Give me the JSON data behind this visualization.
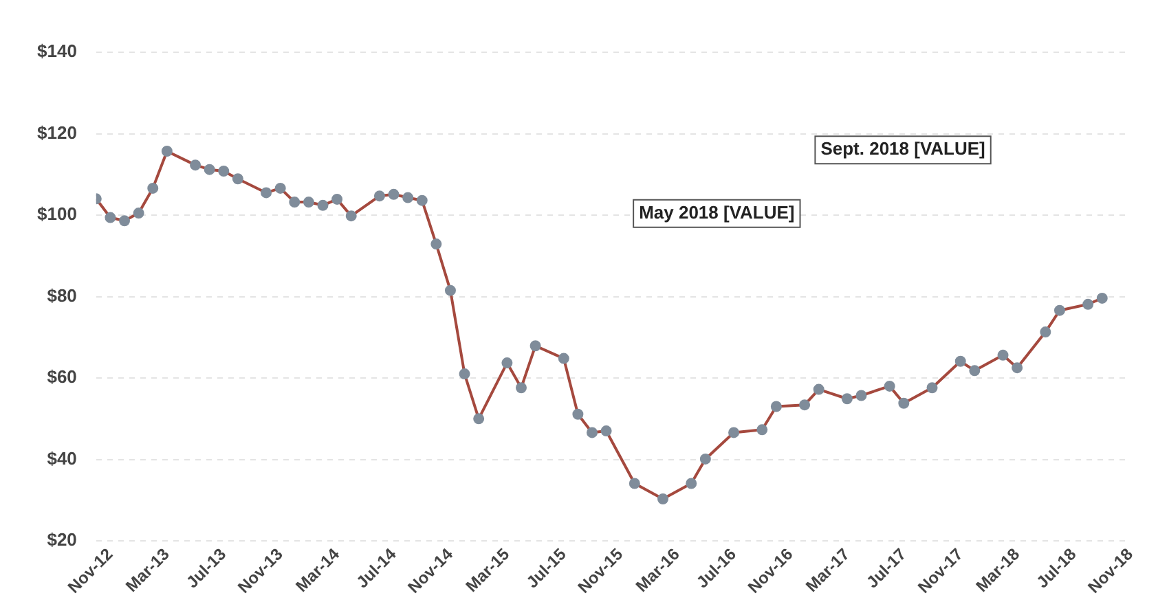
{
  "chart_data": {
    "type": "line",
    "x": [
      "2012-10",
      "2012-11",
      "2012-12",
      "2013-01",
      "2013-02",
      "2013-03",
      "2013-05",
      "2013-06",
      "2013-07",
      "2013-08",
      "2013-10",
      "2013-11",
      "2013-12",
      "2014-01",
      "2014-02",
      "2014-03",
      "2014-04",
      "2014-06",
      "2014-07",
      "2014-08",
      "2014-09",
      "2014-10",
      "2014-11",
      "2014-12",
      "2015-01",
      "2015-03",
      "2015-04",
      "2015-05",
      "2015-07",
      "2015-08",
      "2015-09",
      "2015-10",
      "2015-12",
      "2016-02",
      "2016-04",
      "2016-05",
      "2016-07",
      "2016-09",
      "2016-10",
      "2016-12",
      "2017-01",
      "2017-03",
      "2017-04",
      "2017-06",
      "2017-07",
      "2017-09",
      "2017-11",
      "2017-12",
      "2018-02",
      "2018-03",
      "2018-05",
      "2018-06",
      "2018-08",
      "2018-09"
    ],
    "series": [
      {
        "color": "#a5493e",
        "values": [
          104,
          99.4,
          98.6,
          100.5,
          106.6,
          115.7,
          112.3,
          111.2,
          110.8,
          108.9,
          105.5,
          106.6,
          103.2,
          103.2,
          102.4,
          103.9,
          99.8,
          104.7,
          105.1,
          104.3,
          103.6,
          92.9,
          81.5,
          61,
          50,
          63.7,
          57.6,
          67.9,
          64.8,
          51.1,
          46.6,
          47,
          34.1,
          30.3,
          34.1,
          40.1,
          46.6,
          47.3,
          53,
          53.4,
          57.2,
          54.9,
          55.7,
          58,
          53.8,
          57.6,
          64.1,
          61.8,
          65.6,
          62.5,
          71.3,
          76.6,
          78.1,
          79.6
        ]
      }
    ],
    "xlim": [
      "2012-10",
      "2018-11"
    ],
    "xticks": [
      {
        "value": "2012-11",
        "label": "Nov-12"
      },
      {
        "value": "2013-03",
        "label": "Mar-13"
      },
      {
        "value": "2013-07",
        "label": "Jul-13"
      },
      {
        "value": "2013-11",
        "label": "Nov-13"
      },
      {
        "value": "2014-03",
        "label": "Mar-14"
      },
      {
        "value": "2014-07",
        "label": "Jul-14"
      },
      {
        "value": "2014-11",
        "label": "Nov-14"
      },
      {
        "value": "2015-03",
        "label": "Mar-15"
      },
      {
        "value": "2015-07",
        "label": "Jul-15"
      },
      {
        "value": "2015-11",
        "label": "Nov-15"
      },
      {
        "value": "2016-03",
        "label": "Mar-16"
      },
      {
        "value": "2016-07",
        "label": "Jul-16"
      },
      {
        "value": "2016-11",
        "label": "Nov-16"
      },
      {
        "value": "2017-03",
        "label": "Mar-17"
      },
      {
        "value": "2017-07",
        "label": "Jul-17"
      },
      {
        "value": "2017-11",
        "label": "Nov-17"
      },
      {
        "value": "2018-03",
        "label": "Mar-18"
      },
      {
        "value": "2018-07",
        "label": "Jul-18"
      },
      {
        "value": "2018-11",
        "label": "Nov-18"
      }
    ],
    "ylim": [
      20,
      140
    ],
    "yticks": [
      {
        "value": 20,
        "label": "$20"
      },
      {
        "value": 40,
        "label": "$40"
      },
      {
        "value": 60,
        "label": "$60"
      },
      {
        "value": 80,
        "label": "$80"
      },
      {
        "value": 100,
        "label": "$100"
      },
      {
        "value": 120,
        "label": "$120"
      },
      {
        "value": 140,
        "label": "$140"
      }
    ],
    "grid": "y",
    "legend": false,
    "marker": "circle",
    "line_style": "solid",
    "annotations": [
      "Sept. 2018 [VALUE]",
      "May 2018 [VALUE]"
    ]
  }
}
